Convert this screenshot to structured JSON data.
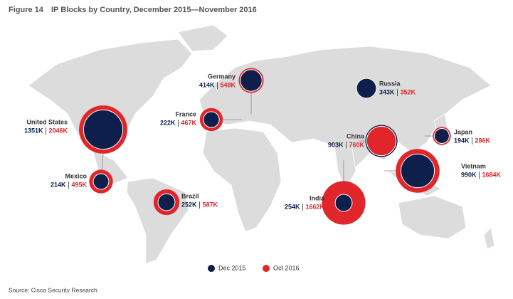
{
  "chart_data": {
    "type": "bubble-map",
    "figure": "Figure 14",
    "title": "IP Blocks by Country, December 2015—November 2016",
    "source": "Source: Cisco Security Research",
    "categories": [
      "United States",
      "Mexico",
      "Brazil",
      "France",
      "Germany",
      "Russia",
      "China",
      "India",
      "Japan",
      "Vietnam"
    ],
    "series": [
      {
        "name": "Dec 2015",
        "color": "#0d1f4a",
        "values": [
          1351,
          214,
          252,
          222,
          414,
          343,
          903,
          254,
          194,
          990
        ],
        "value_labels": [
          "1351K",
          "214K",
          "252K",
          "222K",
          "414K",
          "343K",
          "903K",
          "254K",
          "194K",
          "990K"
        ]
      },
      {
        "name": "Oct 2016",
        "color": "#e0262b",
        "values": [
          2046,
          495,
          587,
          467,
          548,
          352,
          760,
          1662,
          286,
          1684
        ],
        "value_labels": [
          "2046K",
          "495K",
          "587K",
          "467K",
          "548K",
          "352K",
          "760K",
          "1662K",
          "286K",
          "1684K"
        ]
      }
    ]
  }
}
